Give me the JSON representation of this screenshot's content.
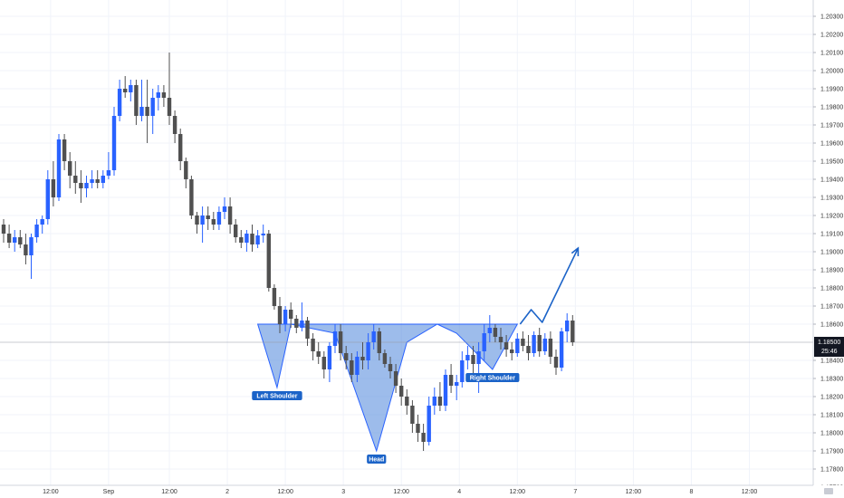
{
  "chart_data": {
    "type": "candlestick",
    "title": "",
    "xlabel": "",
    "ylabel": "",
    "ylim": [
      1.177,
      1.2035
    ],
    "y_tick_labels": [
      "1.20300",
      "1.20200",
      "1.20100",
      "1.20000",
      "1.19900",
      "1.19800",
      "1.19700",
      "1.19600",
      "1.19500",
      "1.19400",
      "1.19300",
      "1.19200",
      "1.19100",
      "1.19000",
      "1.18900",
      "1.18800",
      "1.18700",
      "1.18600",
      "1.18400",
      "1.18300",
      "1.18200",
      "1.18100",
      "1.18000",
      "1.17900",
      "1.17800",
      "1.17700"
    ],
    "x_tick_labels": [
      "12:00",
      "Sep",
      "12:00",
      "2",
      "12:00",
      "3",
      "12:00",
      "4",
      "12:00",
      "7",
      "12:00",
      "8",
      "12:00"
    ],
    "x_tick_index": [
      8.5,
      19,
      30,
      40.5,
      51,
      61.5,
      72,
      82.5,
      93,
      103.5,
      114,
      124.5,
      135
    ],
    "current_price": "1.18500",
    "countdown": "25:46",
    "up_color": "#2962ff",
    "down_color": "#505050",
    "candles": [
      [
        1.1915,
        1.1918,
        1.1905,
        1.191
      ],
      [
        1.191,
        1.1915,
        1.1902,
        1.1905
      ],
      [
        1.1905,
        1.1912,
        1.19,
        1.1908
      ],
      [
        1.1908,
        1.1912,
        1.1902,
        1.1904
      ],
      [
        1.1904,
        1.191,
        1.1893,
        1.1898
      ],
      [
        1.1898,
        1.191,
        1.1885,
        1.1908
      ],
      [
        1.1908,
        1.1918,
        1.1905,
        1.1915
      ],
      [
        1.1915,
        1.192,
        1.191,
        1.1918
      ],
      [
        1.1918,
        1.1945,
        1.1915,
        1.194
      ],
      [
        1.194,
        1.195,
        1.1925,
        1.193
      ],
      [
        1.193,
        1.1965,
        1.1928,
        1.1962
      ],
      [
        1.1962,
        1.1965,
        1.1945,
        1.195
      ],
      [
        1.195,
        1.1955,
        1.1935,
        1.1942
      ],
      [
        1.1942,
        1.195,
        1.1932,
        1.1938
      ],
      [
        1.1938,
        1.1945,
        1.1927,
        1.1935
      ],
      [
        1.1935,
        1.1942,
        1.193,
        1.1938
      ],
      [
        1.1938,
        1.1945,
        1.1935,
        1.194
      ],
      [
        1.194,
        1.1945,
        1.1935,
        1.1938
      ],
      [
        1.1938,
        1.1945,
        1.1935,
        1.1942
      ],
      [
        1.1942,
        1.1955,
        1.194,
        1.1945
      ],
      [
        1.1945,
        1.198,
        1.1942,
        1.1975
      ],
      [
        1.1975,
        1.1995,
        1.1972,
        1.199
      ],
      [
        1.199,
        1.1997,
        1.1985,
        1.1988
      ],
      [
        1.1988,
        1.1995,
        1.1983,
        1.1992
      ],
      [
        1.1992,
        1.1995,
        1.197,
        1.1975
      ],
      [
        1.1975,
        1.1995,
        1.1972,
        1.198
      ],
      [
        1.198,
        1.1995,
        1.196,
        1.1975
      ],
      [
        1.1975,
        1.199,
        1.1965,
        1.1985
      ],
      [
        1.1985,
        1.1992,
        1.1978,
        1.1988
      ],
      [
        1.1988,
        1.1992,
        1.198,
        1.1985
      ],
      [
        1.1985,
        1.201,
        1.197,
        1.1975
      ],
      [
        1.1975,
        1.1978,
        1.196,
        1.1965
      ],
      [
        1.1965,
        1.1968,
        1.1945,
        1.195
      ],
      [
        1.195,
        1.1952,
        1.1935,
        1.194
      ],
      [
        1.194,
        1.1942,
        1.1918,
        1.192
      ],
      [
        1.192,
        1.1922,
        1.191,
        1.1915
      ],
      [
        1.1915,
        1.1925,
        1.1905,
        1.192
      ],
      [
        1.192,
        1.1925,
        1.1912,
        1.1918
      ],
      [
        1.1918,
        1.1922,
        1.1912,
        1.1915
      ],
      [
        1.1915,
        1.1925,
        1.1912,
        1.1922
      ],
      [
        1.1922,
        1.193,
        1.1918,
        1.1925
      ],
      [
        1.1925,
        1.193,
        1.191,
        1.1915
      ],
      [
        1.1915,
        1.1918,
        1.1905,
        1.1908
      ],
      [
        1.1908,
        1.1912,
        1.1902,
        1.1905
      ],
      [
        1.1905,
        1.1912,
        1.19,
        1.191
      ],
      [
        1.191,
        1.1915,
        1.19,
        1.1904
      ],
      [
        1.1904,
        1.1912,
        1.1902,
        1.1909
      ],
      [
        1.1909,
        1.1915,
        1.1905,
        1.191
      ],
      [
        1.191,
        1.1912,
        1.1878,
        1.188
      ],
      [
        1.188,
        1.1882,
        1.1868,
        1.187
      ],
      [
        1.187,
        1.1875,
        1.1855,
        1.186
      ],
      [
        1.186,
        1.187,
        1.1856,
        1.1868
      ],
      [
        1.1868,
        1.1872,
        1.1858,
        1.1863
      ],
      [
        1.1863,
        1.1865,
        1.1855,
        1.1858
      ],
      [
        1.1858,
        1.1872,
        1.1856,
        1.1862
      ],
      [
        1.1862,
        1.1864,
        1.1848,
        1.1852
      ],
      [
        1.1852,
        1.1855,
        1.184,
        1.1845
      ],
      [
        1.1845,
        1.185,
        1.1838,
        1.1842
      ],
      [
        1.1842,
        1.1845,
        1.183,
        1.1835
      ],
      [
        1.1835,
        1.185,
        1.1828,
        1.1848
      ],
      [
        1.1848,
        1.186,
        1.1844,
        1.1856
      ],
      [
        1.1856,
        1.186,
        1.184,
        1.1844
      ],
      [
        1.1844,
        1.1848,
        1.1835,
        1.184
      ],
      [
        1.184,
        1.1844,
        1.1828,
        1.1832
      ],
      [
        1.1832,
        1.1845,
        1.1828,
        1.1842
      ],
      [
        1.1842,
        1.185,
        1.1835,
        1.184
      ],
      [
        1.184,
        1.1855,
        1.1835,
        1.185
      ],
      [
        1.185,
        1.186,
        1.1846,
        1.1856
      ],
      [
        1.1856,
        1.1858,
        1.184,
        1.1844
      ],
      [
        1.1844,
        1.1846,
        1.1836,
        1.1838
      ],
      [
        1.1838,
        1.1842,
        1.183,
        1.1834
      ],
      [
        1.1834,
        1.1838,
        1.1822,
        1.1826
      ],
      [
        1.1826,
        1.183,
        1.1815,
        1.182
      ],
      [
        1.182,
        1.1824,
        1.181,
        1.1815
      ],
      [
        1.1815,
        1.1818,
        1.18,
        1.1805
      ],
      [
        1.1805,
        1.181,
        1.1795,
        1.18
      ],
      [
        1.18,
        1.1805,
        1.179,
        1.1795
      ],
      [
        1.1795,
        1.182,
        1.1793,
        1.1815
      ],
      [
        1.1815,
        1.1825,
        1.181,
        1.182
      ],
      [
        1.182,
        1.1828,
        1.1812,
        1.1815
      ],
      [
        1.1815,
        1.1835,
        1.1812,
        1.1832
      ],
      [
        1.1832,
        1.1838,
        1.1822,
        1.1826
      ],
      [
        1.1826,
        1.1832,
        1.1818,
        1.1828
      ],
      [
        1.1828,
        1.1845,
        1.1825,
        1.184
      ],
      [
        1.184,
        1.1848,
        1.1835,
        1.1843
      ],
      [
        1.1843,
        1.1848,
        1.1832,
        1.1838
      ],
      [
        1.1838,
        1.185,
        1.1822,
        1.1845
      ],
      [
        1.1845,
        1.186,
        1.184,
        1.1855
      ],
      [
        1.1855,
        1.1865,
        1.185,
        1.1858
      ],
      [
        1.1858,
        1.186,
        1.185,
        1.1853
      ],
      [
        1.1853,
        1.1858,
        1.1846,
        1.185
      ],
      [
        1.185,
        1.1854,
        1.1842,
        1.1846
      ],
      [
        1.1846,
        1.185,
        1.184,
        1.1844
      ],
      [
        1.1844,
        1.1855,
        1.1842,
        1.1852
      ],
      [
        1.1852,
        1.1856,
        1.1845,
        1.1848
      ],
      [
        1.1848,
        1.1854,
        1.184,
        1.1844
      ],
      [
        1.1844,
        1.1856,
        1.1842,
        1.1854
      ],
      [
        1.1854,
        1.1858,
        1.1842,
        1.1845
      ],
      [
        1.1845,
        1.1855,
        1.1843,
        1.1852
      ],
      [
        1.1852,
        1.1856,
        1.1838,
        1.1842
      ],
      [
        1.1842,
        1.1846,
        1.1832,
        1.1836
      ],
      [
        1.1836,
        1.1858,
        1.1834,
        1.1856
      ],
      [
        1.1856,
        1.1866,
        1.185,
        1.1862
      ],
      [
        1.1862,
        1.1865,
        1.1848,
        1.185
      ]
    ],
    "neckline": 1.186,
    "pattern": {
      "points": [
        [
          46,
          1.186
        ],
        [
          49.5,
          1.1825
        ],
        [
          52,
          1.186
        ],
        [
          60,
          1.1855
        ],
        [
          67.5,
          1.179
        ],
        [
          73,
          1.185
        ],
        [
          78.5,
          1.186
        ],
        [
          82,
          1.1855
        ],
        [
          88.5,
          1.1835
        ],
        [
          93,
          1.186
        ]
      ],
      "fill_color": "#5b8fde",
      "line_color": "#2962ff"
    },
    "labels": [
      {
        "text": "Left Shoulder",
        "at": [
          49.5,
          1.1825
        ]
      },
      {
        "text": "Head",
        "at": [
          67.5,
          1.179
        ]
      },
      {
        "text": "Right Shoulder",
        "at": [
          88.5,
          1.1835
        ]
      }
    ],
    "projection": {
      "points": [
        [
          93.5,
          1.186
        ],
        [
          95.5,
          1.1868
        ],
        [
          97.5,
          1.1861
        ],
        [
          104,
          1.1902
        ]
      ],
      "color": "#1b63c8"
    }
  }
}
